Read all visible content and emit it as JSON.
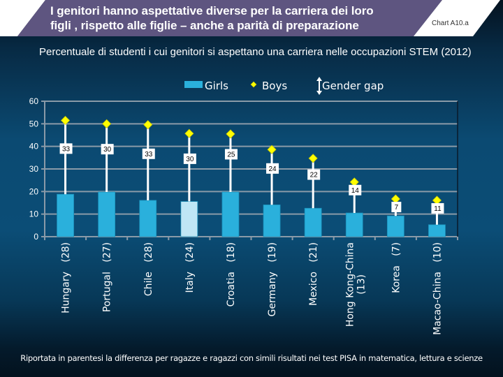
{
  "header": {
    "title_line1": "I genitori hanno aspettative diverse per la carriera dei loro",
    "title_line2": "figli , rispetto alle figlie – anche a parità di preparazione",
    "chart_id": "Chart A10.a",
    "title_bg": "#5e5580"
  },
  "subtitle": "Percentuale di studenti i cui genitori si aspettano una carriera nelle occupazioni STEM (2012)",
  "footnote": "Riportata in parentesi la differenza per ragazze e ragazzi con simili risultati nei test PISA in matematica, lettura e scienze",
  "chart_data": {
    "type": "bar",
    "title": "Percentuale di studenti i cui genitori si aspettano una carriera nelle occupazioni STEM (2012)",
    "xlabel": "",
    "ylabel": "",
    "ylim": [
      0,
      60
    ],
    "yticks": [
      0,
      10,
      20,
      30,
      40,
      50,
      60
    ],
    "grid": true,
    "legend_position": "top-center",
    "legend": [
      {
        "name": "Girls",
        "marker": "bar",
        "color": "#2ab0dc"
      },
      {
        "name": "Boys",
        "marker": "diamond",
        "color": "#ffff00"
      },
      {
        "name": "Gender gap",
        "marker": "double-arrow",
        "color": "#ffffff"
      }
    ],
    "categories": [
      {
        "name": "Hungary",
        "paren": "(28)"
      },
      {
        "name": "Portugal",
        "paren": "(27)"
      },
      {
        "name": "Chile",
        "paren": "(28)"
      },
      {
        "name": "Italy",
        "paren": "(24)"
      },
      {
        "name": "Croatia",
        "paren": "(18)"
      },
      {
        "name": "Germany",
        "paren": "(19)"
      },
      {
        "name": "Mexico",
        "paren": "(21)"
      },
      {
        "name": "Hong Kong-China",
        "paren": "(13)"
      },
      {
        "name": "Korea",
        "paren": "(7)"
      },
      {
        "name": "Macao-China",
        "paren": "(10)"
      }
    ],
    "series": [
      {
        "name": "Girls",
        "type": "bar",
        "values": [
          18.8,
          19.8,
          16.1,
          15.6,
          19.8,
          14.1,
          12.6,
          10.5,
          9.2,
          5.3
        ]
      },
      {
        "name": "Boys",
        "type": "marker",
        "values": [
          51.5,
          50.0,
          49.6,
          45.7,
          45.5,
          38.6,
          34.7,
          24.2,
          16.7,
          16.1
        ]
      }
    ],
    "gender_gap_labels": [
      "33",
      "30",
      "33",
      "30",
      "25",
      "24",
      "22",
      "14",
      "7",
      "11"
    ],
    "highlight_category": "Italy",
    "colors": {
      "girls_bar": "#2ab0dc",
      "girls_bar_highlight": "#bfe6f5",
      "boys_marker": "#ffff00",
      "gap_line": "#ffffff",
      "grid": "#8a9aa8"
    }
  }
}
